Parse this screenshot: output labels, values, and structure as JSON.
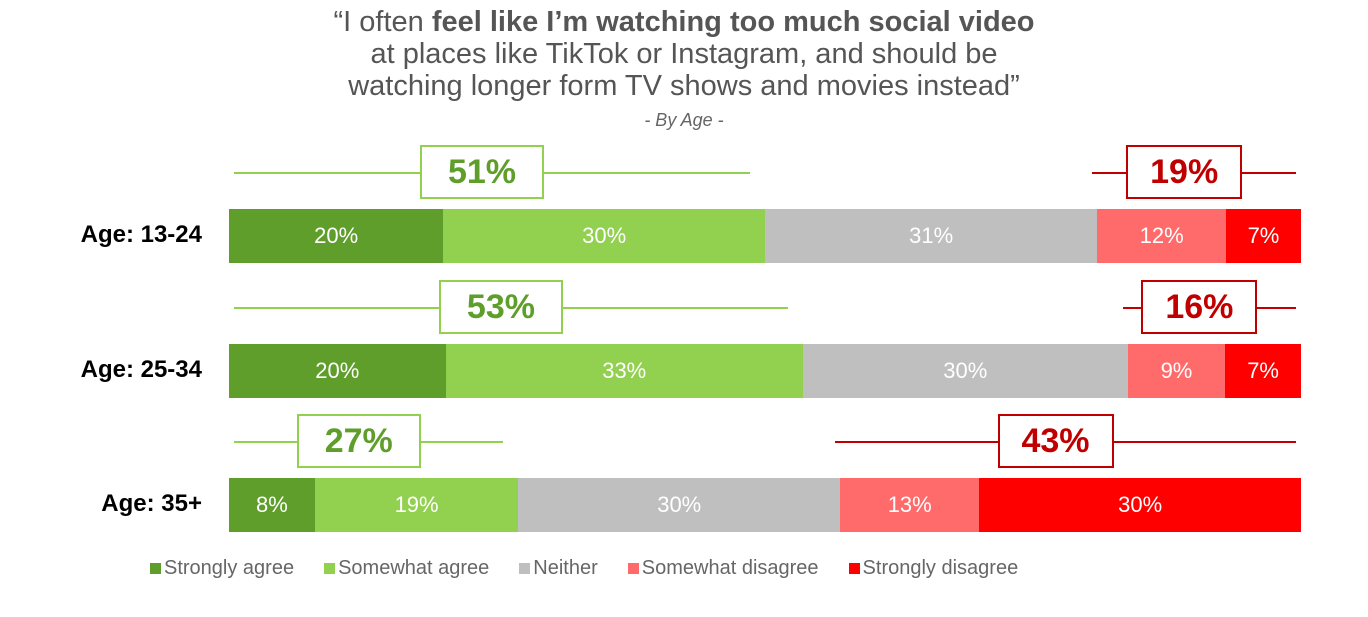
{
  "title": {
    "pre": "“I often ",
    "bold": "feel like I’m watching too much social video",
    "line2": "at places like TikTok or Instagram, and should be",
    "line3": "watching longer form TV shows and movies instead”",
    "subtitle": "- By Age -"
  },
  "chart_data": {
    "type": "bar",
    "orientation": "horizontal-stacked-100",
    "categories": [
      "Age: 13-24",
      "Age: 25-34",
      "Age: 35+"
    ],
    "series": [
      {
        "name": "Strongly agree",
        "color": "#5f9e2a",
        "values": [
          20,
          20,
          8
        ],
        "labels": [
          "20%",
          "20%",
          "8%"
        ]
      },
      {
        "name": "Somewhat agree",
        "color": "#92d050",
        "values": [
          30,
          33,
          19
        ],
        "labels": [
          "30%",
          "33%",
          "19%"
        ]
      },
      {
        "name": "Neither",
        "color": "#bfbfbf",
        "values": [
          31,
          30,
          30
        ],
        "labels": [
          "31%",
          "30%",
          "30%"
        ]
      },
      {
        "name": "Somewhat disagree",
        "color": "#ff6b6b",
        "values": [
          12,
          9,
          13
        ],
        "labels": [
          "12%",
          "9%",
          "13%"
        ]
      },
      {
        "name": "Strongly disagree",
        "color": "#ff0000",
        "values": [
          7,
          7,
          30
        ],
        "labels": [
          "7%",
          "7%",
          "30%"
        ]
      }
    ],
    "agree_totals": [
      "51%",
      "53%",
      "27%"
    ],
    "disagree_totals": [
      "19%",
      "16%",
      "43%"
    ],
    "legend_position": "bottom",
    "xlim": [
      0,
      100
    ]
  }
}
